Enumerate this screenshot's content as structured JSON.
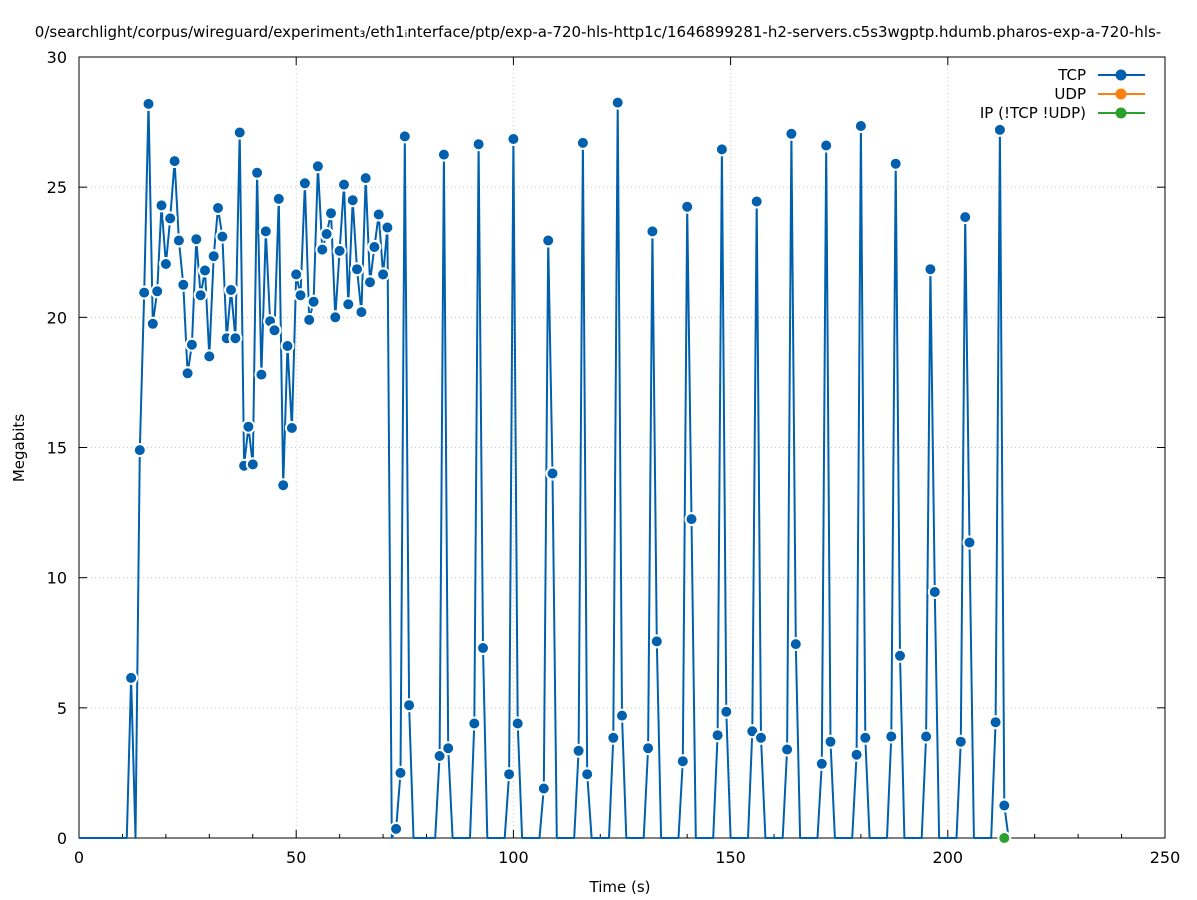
{
  "chart_data": {
    "type": "line",
    "title": "0/searchlight/corpus/wireguard/experiment₃/eth1ᵢnterface/ptp/exp-a-720-hls-http1c/1646899281-h2-servers.c5s3wgptp.hdumb.pharos-exp-a-720-hls-",
    "xlabel": "Time (s)",
    "ylabel": "Megabits",
    "xlim": [
      0,
      250
    ],
    "ylim": [
      0,
      30
    ],
    "x_ticks": [
      "0",
      "50",
      "100",
      "150",
      "200",
      "250"
    ],
    "y_ticks": [
      "0",
      "5",
      "10",
      "15",
      "20",
      "25",
      "30"
    ],
    "grid": true,
    "legend_position": "top-right",
    "series": [
      {
        "name": "TCP",
        "color": "#0060ad",
        "x": [
          0,
          1,
          2,
          3,
          4,
          5,
          6,
          7,
          8,
          9,
          10,
          11,
          12,
          13,
          14,
          15,
          16,
          17,
          18,
          19,
          20,
          21,
          22,
          23,
          24,
          25,
          26,
          27,
          28,
          29,
          30,
          31,
          32,
          33,
          34,
          35,
          36,
          37,
          38,
          39,
          40,
          41,
          42,
          43,
          44,
          45,
          46,
          47,
          48,
          49,
          50,
          51,
          52,
          53,
          54,
          55,
          56,
          57,
          58,
          59,
          60,
          61,
          62,
          63,
          64,
          65,
          66,
          67,
          68,
          69,
          70,
          71,
          72,
          73,
          74,
          75,
          76,
          77,
          78,
          79,
          80,
          81,
          82,
          83,
          84,
          85,
          86,
          87,
          88,
          89,
          90,
          91,
          92,
          93,
          94,
          95,
          96,
          97,
          98,
          99,
          100,
          101,
          102,
          103,
          104,
          105,
          106,
          107,
          108,
          109,
          110,
          111,
          112,
          113,
          114,
          115,
          116,
          117,
          118,
          119,
          120,
          121,
          122,
          123,
          124,
          125,
          126,
          127,
          128,
          129,
          130,
          131,
          132,
          133,
          134,
          135,
          136,
          137,
          138,
          139,
          140,
          141,
          142,
          143,
          144,
          145,
          146,
          147,
          148,
          149,
          150,
          151,
          152,
          153,
          154,
          155,
          156,
          157,
          158,
          159,
          160,
          161,
          162,
          163,
          164,
          165,
          166,
          167,
          168,
          169,
          170,
          171,
          172,
          173,
          174,
          175,
          176,
          177,
          178,
          179,
          180,
          181,
          182,
          183,
          184,
          185,
          186,
          187,
          188,
          189,
          190,
          191,
          192,
          193,
          194,
          195,
          196,
          197,
          198,
          199,
          200,
          201,
          202,
          203,
          204,
          205,
          206,
          207,
          208,
          209,
          210,
          211,
          212,
          213,
          214
        ],
        "y": [
          0,
          0,
          0,
          0,
          0,
          0,
          0,
          0,
          0,
          0,
          0,
          0,
          6.15,
          0,
          14.9,
          20.95,
          28.2,
          19.75,
          21.0,
          24.3,
          22.05,
          23.8,
          26.0,
          22.95,
          21.25,
          17.85,
          18.95,
          23.0,
          20.85,
          21.8,
          18.5,
          22.35,
          24.2,
          23.1,
          19.2,
          21.05,
          19.2,
          27.1,
          14.3,
          15.8,
          14.35,
          25.55,
          17.8,
          23.3,
          19.85,
          19.5,
          24.55,
          13.55,
          18.9,
          15.75,
          21.65,
          20.85,
          25.15,
          19.9,
          20.6,
          25.8,
          22.6,
          23.2,
          24.0,
          20.0,
          22.55,
          25.1,
          20.5,
          24.5,
          21.85,
          20.2,
          25.35,
          21.35,
          22.7,
          23.95,
          21.65,
          23.45,
          0,
          0.35,
          2.5,
          26.95,
          5.1,
          0,
          0,
          0,
          0,
          0,
          0,
          3.15,
          26.25,
          3.45,
          0,
          0,
          0,
          0,
          0,
          4.4,
          26.65,
          7.3,
          0,
          0,
          0,
          0,
          0,
          2.45,
          26.85,
          4.4,
          0,
          0,
          0,
          0,
          0,
          1.9,
          22.95,
          14.0,
          0,
          0,
          0,
          0,
          0,
          3.35,
          26.7,
          2.45,
          0,
          0,
          0,
          0,
          0,
          3.85,
          28.25,
          4.7,
          0,
          0,
          0,
          0,
          0,
          3.45,
          23.3,
          7.55,
          0,
          0,
          0,
          0,
          0,
          2.95,
          24.25,
          12.25,
          0,
          0,
          0,
          0,
          0,
          3.95,
          26.45,
          4.85,
          0,
          0,
          0,
          0,
          0,
          4.1,
          24.45,
          3.85,
          0,
          0,
          0,
          0,
          0,
          3.4,
          27.05,
          7.45,
          0,
          0,
          0,
          0,
          0,
          2.85,
          26.6,
          3.7,
          0,
          0,
          0,
          0,
          0,
          3.2,
          27.35,
          3.85,
          0,
          0,
          0,
          0,
          0,
          3.9,
          25.9,
          7.0,
          0,
          0,
          0,
          0,
          0,
          3.9,
          21.85,
          9.45,
          0,
          0,
          0,
          0,
          0,
          3.7,
          23.85,
          11.35,
          0,
          0,
          0,
          0,
          0,
          4.45,
          27.2,
          1.25,
          0
        ]
      },
      {
        "name": "UDP",
        "color": "#ff7f0e",
        "x": [],
        "y": []
      },
      {
        "name": "IP (!TCP  !UDP)",
        "color": "#2ca02c",
        "x": [
          213
        ],
        "y": [
          0
        ]
      }
    ]
  }
}
